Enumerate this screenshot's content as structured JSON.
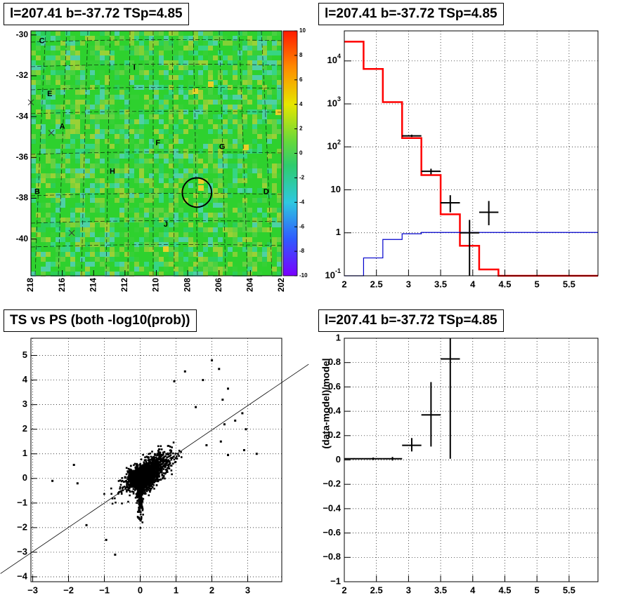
{
  "colors": {
    "data": "#000000",
    "model_red": "#ff0000",
    "model_blue": "#0000cc",
    "line": "#000000"
  },
  "chart_data": [
    {
      "id": "skymap",
      "type": "heatmap",
      "title": "l=207.41 b=-37.72 TSp=4.85",
      "xlabel": "",
      "ylabel": "",
      "xlim": [
        218,
        202
      ],
      "ylim": [
        -41.8,
        -29.8
      ],
      "x_ticks": [
        "218",
        "216",
        "214",
        "212",
        "210",
        "208",
        "206",
        "204",
        "202"
      ],
      "y_ticks": [
        "-30",
        "-32",
        "-34",
        "-36",
        "-38",
        "-40"
      ],
      "colorbar": {
        "range": [
          -10,
          10
        ],
        "ticks": [
          "10",
          "8",
          "6",
          "4",
          "2",
          "0",
          "-2",
          "-4",
          "-6",
          "-8",
          "-10"
        ]
      },
      "region_labels": [
        {
          "text": "C",
          "x": 217.3,
          "y": -30.3
        },
        {
          "text": "I",
          "x": 211.4,
          "y": -31.6
        },
        {
          "text": "E",
          "x": 216.8,
          "y": -32.9
        },
        {
          "text": "A",
          "x": 216.0,
          "y": -34.5
        },
        {
          "text": "F",
          "x": 209.9,
          "y": -35.3
        },
        {
          "text": "G",
          "x": 205.8,
          "y": -35.5
        },
        {
          "text": "H",
          "x": 212.8,
          "y": -36.7
        },
        {
          "text": "B",
          "x": 217.6,
          "y": -37.7
        },
        {
          "text": "D",
          "x": 203.0,
          "y": -37.7
        },
        {
          "text": "J",
          "x": 209.4,
          "y": -39.3
        }
      ],
      "source_circle": {
        "x": 207.41,
        "y": -37.72,
        "r_deg": 0.55
      },
      "cross_marks": [
        {
          "x": 218.0,
          "y": -33.3
        },
        {
          "x": 216.7,
          "y": -34.8
        },
        {
          "x": 215.4,
          "y": -39.7
        }
      ]
    },
    {
      "id": "spectrum",
      "type": "line",
      "title": "l=207.41 b=-37.72 TSp=4.85",
      "xlabel": "",
      "ylabel": "",
      "xlim": [
        2,
        5.95
      ],
      "ylim": [
        0.1,
        50000
      ],
      "y_scale": "log",
      "x_ticks": [
        "2",
        "2.5",
        "3",
        "3.5",
        "4",
        "4.5",
        "5",
        "5.5"
      ],
      "y_ticks": [
        "10^-1",
        "1",
        "10",
        "10^2",
        "10^3",
        "10^4"
      ],
      "series": [
        {
          "style": "step",
          "color": "#ff0000",
          "edges": [
            2.0,
            2.3,
            2.6,
            2.9,
            3.2,
            3.5,
            3.8,
            4.1,
            4.4,
            4.7,
            5.0,
            5.3,
            5.6,
            5.95
          ],
          "values": [
            28000,
            6500,
            1100,
            160,
            22,
            2.7,
            0.5,
            0.14,
            0.1,
            0.1,
            0.1,
            0.1,
            0.1
          ]
        },
        {
          "style": "step",
          "color": "#0000cc",
          "edges": [
            2.0,
            2.3,
            2.6,
            2.9,
            3.2,
            3.5,
            3.8,
            4.1,
            4.4,
            4.7,
            5.0,
            5.3,
            5.6,
            5.95
          ],
          "values": [
            0.09,
            0.26,
            0.7,
            0.95,
            1.02,
            1.02,
            1.02,
            1.02,
            1.02,
            1.02,
            1.02,
            1.02,
            1.02
          ]
        }
      ],
      "points": [
        {
          "x": 3.05,
          "y": 180,
          "xerr": 0.15,
          "ylo": 170,
          "yhi": 192
        },
        {
          "x": 3.35,
          "y": 27,
          "xerr": 0.15,
          "ylo": 23,
          "yhi": 31
        },
        {
          "x": 3.65,
          "y": 5,
          "xerr": 0.15,
          "ylo": 3,
          "yhi": 7.5
        },
        {
          "x": 3.95,
          "y": 1,
          "xerr": 0.15,
          "ylo": 0.1,
          "yhi": 2
        },
        {
          "x": 4.25,
          "y": 3,
          "xerr": 0.15,
          "ylo": 1.5,
          "yhi": 5.5
        }
      ]
    },
    {
      "id": "ts-vs-ps",
      "type": "scatter",
      "title": "TS vs PS (both -log10(prob))",
      "xlabel": "",
      "ylabel": "",
      "xlim": [
        -3.05,
        3.95
      ],
      "ylim": [
        -4.2,
        5.7
      ],
      "x_ticks": [
        "−3",
        "−2",
        "−1",
        "0",
        "1",
        "2",
        "3"
      ],
      "y_ticks": [
        "−4",
        "−3",
        "−2",
        "−1",
        "0",
        "1",
        "2",
        "3",
        "4",
        "5"
      ],
      "reference_line": {
        "slope": 0.99,
        "intercept": -0.01
      },
      "outliers": [
        {
          "x": -2.45,
          "y": -0.1
        },
        {
          "x": -1.85,
          "y": 0.55
        },
        {
          "x": -1.75,
          "y": -0.2
        },
        {
          "x": -1.5,
          "y": -1.9
        },
        {
          "x": -0.95,
          "y": -2.5
        },
        {
          "x": -0.7,
          "y": -3.1
        },
        {
          "x": 0.95,
          "y": 3.95
        },
        {
          "x": 1.25,
          "y": 4.35
        },
        {
          "x": 1.55,
          "y": 2.9
        },
        {
          "x": 1.75,
          "y": 4.0
        },
        {
          "x": 2.0,
          "y": 4.8
        },
        {
          "x": 2.2,
          "y": 4.45
        },
        {
          "x": 2.3,
          "y": 3.2
        },
        {
          "x": 2.45,
          "y": 0.95
        },
        {
          "x": 2.25,
          "y": 1.5
        },
        {
          "x": 2.35,
          "y": 2.2
        },
        {
          "x": 2.45,
          "y": 3.65
        },
        {
          "x": 2.65,
          "y": 2.35
        },
        {
          "x": 2.85,
          "y": 2.65
        },
        {
          "x": 2.9,
          "y": 1.15
        },
        {
          "x": 3.25,
          "y": 1.0
        },
        {
          "x": 2.95,
          "y": 2.0
        },
        {
          "x": 1.85,
          "y": 1.35
        }
      ]
    },
    {
      "id": "residuals",
      "type": "scatter",
      "title": "l=207.41 b=-37.72 TSp=4.85",
      "xlabel": "",
      "ylabel": "(data-model)/model",
      "xlim": [
        2,
        5.95
      ],
      "ylim": [
        -1,
        1
      ],
      "x_ticks": [
        "2",
        "2.5",
        "3",
        "3.5",
        "4",
        "4.5",
        "5",
        "5.5"
      ],
      "y_ticks": [
        "−1",
        "−0.8",
        "−0.6",
        "−0.4",
        "−0.2",
        "0",
        "0.2",
        "0.4",
        "0.6",
        "0.8",
        "1"
      ],
      "points": [
        {
          "x": 2.15,
          "y": 0.01,
          "xerr": 0.15,
          "ylo": 0.005,
          "yhi": 0.015
        },
        {
          "x": 2.45,
          "y": 0.01,
          "xerr": 0.15,
          "ylo": 0.0,
          "yhi": 0.02
        },
        {
          "x": 2.75,
          "y": 0.01,
          "xerr": 0.15,
          "ylo": -0.005,
          "yhi": 0.025
        },
        {
          "x": 3.05,
          "y": 0.12,
          "xerr": 0.15,
          "ylo": 0.07,
          "yhi": 0.18
        },
        {
          "x": 3.35,
          "y": 0.37,
          "xerr": 0.15,
          "ylo": 0.11,
          "yhi": 0.64
        },
        {
          "x": 3.65,
          "y": 0.83,
          "xerr": 0.15,
          "ylo": 0.01,
          "yhi": 1.0
        }
      ]
    }
  ]
}
